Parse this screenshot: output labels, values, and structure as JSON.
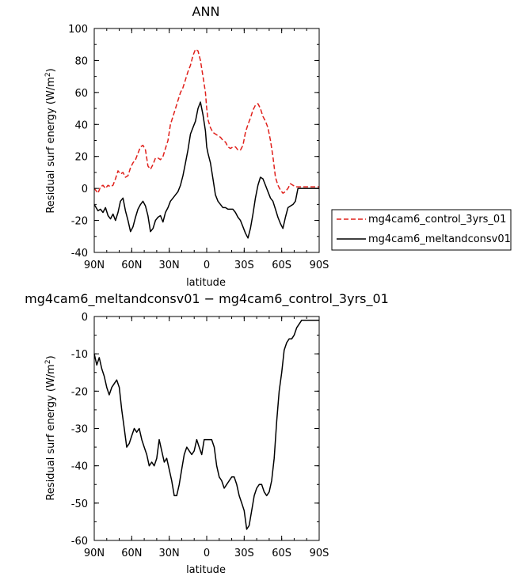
{
  "colors": {
    "control": "#e0201b",
    "melt": "#000000",
    "axis": "#000000"
  },
  "chart_data": [
    {
      "type": "line",
      "title": "ANN",
      "xlabel": "latitude",
      "ylabel": "Residual surf energy (W/m²)",
      "ylabel_prefix": "Residual surf energy  (W/m",
      "ylabel_sup": "2",
      "ylabel_suffix": ")",
      "xlim": [
        90,
        -90
      ],
      "ylim": [
        -40,
        100
      ],
      "xticks": [
        90,
        60,
        30,
        0,
        -30,
        -60,
        -90
      ],
      "xtick_labels": [
        "90N",
        "60N",
        "30N",
        "0",
        "30S",
        "60S",
        "90S"
      ],
      "yticks": [
        -40,
        -20,
        0,
        20,
        40,
        60,
        80,
        100
      ],
      "ytick_labels": [
        "-40",
        "-20",
        "0",
        "20",
        "40",
        "60",
        "80",
        "100"
      ],
      "grid": false,
      "legend_position": "right",
      "series": [
        {
          "name": "mg4cam6_control_3yrs_01",
          "style": "dashed",
          "color": "#e0201b",
          "x": [
            90,
            87,
            85,
            83,
            81,
            79,
            77,
            75,
            73,
            71,
            69,
            67,
            65,
            63,
            61,
            59,
            57,
            55,
            53,
            51,
            49,
            47,
            45,
            43,
            41,
            39,
            37,
            35,
            33,
            31,
            29,
            27,
            25,
            23,
            21,
            19,
            17,
            15,
            13,
            11,
            9,
            7,
            5,
            3,
            1,
            0,
            -1,
            -3,
            -5,
            -7,
            -9,
            -11,
            -13,
            -15,
            -17,
            -19,
            -21,
            -23,
            -25,
            -27,
            -29,
            -31,
            -33,
            -35,
            -37,
            -39,
            -41,
            -43,
            -45,
            -47,
            -49,
            -51,
            -53,
            -55,
            -57,
            -59,
            -61,
            -63,
            -65,
            -67,
            -69,
            -71,
            -73,
            -75,
            -77,
            -79,
            -81,
            -83,
            -85,
            -87,
            -90
          ],
          "y": [
            0,
            -3,
            1,
            2,
            0,
            2,
            1,
            2,
            6,
            11,
            9,
            10,
            7,
            8,
            13,
            16,
            18,
            22,
            26,
            27,
            24,
            14,
            12,
            15,
            19,
            19,
            18,
            20,
            25,
            30,
            40,
            45,
            50,
            55,
            60,
            63,
            68,
            73,
            77,
            83,
            87,
            86,
            80,
            70,
            60,
            50,
            43,
            38,
            35,
            34,
            33,
            32,
            30,
            29,
            26,
            25,
            26,
            26,
            24,
            24,
            27,
            35,
            40,
            44,
            49,
            52,
            53,
            50,
            45,
            42,
            38,
            30,
            20,
            7,
            2,
            -1,
            -3,
            -2,
            0,
            3,
            2,
            1,
            1,
            1,
            1,
            1,
            1,
            1,
            1,
            1,
            1
          ]
        },
        {
          "name": "mg4cam6_meltandconsv01",
          "style": "solid",
          "color": "#000000",
          "x": [
            90,
            87,
            85,
            83,
            81,
            79,
            77,
            75,
            73,
            71,
            69,
            67,
            65,
            63,
            61,
            59,
            57,
            55,
            53,
            51,
            49,
            47,
            45,
            43,
            41,
            39,
            37,
            35,
            33,
            31,
            29,
            27,
            25,
            23,
            21,
            19,
            17,
            15,
            13,
            11,
            9,
            7,
            5,
            3,
            1,
            0,
            -1,
            -3,
            -5,
            -7,
            -9,
            -11,
            -13,
            -15,
            -17,
            -19,
            -21,
            -23,
            -25,
            -27,
            -29,
            -31,
            -33,
            -35,
            -37,
            -39,
            -41,
            -43,
            -45,
            -47,
            -49,
            -51,
            -53,
            -55,
            -57,
            -59,
            -61,
            -63,
            -65,
            -67,
            -69,
            -71,
            -73,
            -75,
            -77,
            -79,
            -81,
            -83,
            -85,
            -87,
            -90
          ],
          "y": [
            -10,
            -14,
            -13,
            -15,
            -12,
            -17,
            -19,
            -16,
            -20,
            -15,
            -8,
            -6,
            -14,
            -20,
            -27,
            -24,
            -18,
            -13,
            -10,
            -8,
            -11,
            -17,
            -27,
            -25,
            -20,
            -18,
            -17,
            -21,
            -15,
            -12,
            -8,
            -6,
            -4,
            -2,
            2,
            8,
            16,
            24,
            34,
            38,
            42,
            50,
            54,
            46,
            36,
            26,
            22,
            16,
            6,
            -4,
            -8,
            -10,
            -12,
            -12,
            -13,
            -13,
            -13,
            -15,
            -18,
            -20,
            -24,
            -28,
            -31,
            -25,
            -16,
            -6,
            2,
            7,
            6,
            2,
            -2,
            -6,
            -8,
            -13,
            -18,
            -22,
            -25,
            -18,
            -12,
            -11,
            -10,
            -8,
            0,
            0,
            0,
            0,
            0,
            0,
            0,
            0,
            0
          ]
        }
      ]
    },
    {
      "type": "line",
      "title": "mg4cam6_meltandconsv01 − mg4cam6_control_3yrs_01",
      "xlabel": "latitude",
      "ylabel": "Residual surf energy (W/m²)",
      "ylabel_prefix": "Residual surf energy  (W/m",
      "ylabel_sup": "2",
      "ylabel_suffix": ")",
      "xlim": [
        90,
        -90
      ],
      "ylim": [
        -60,
        0
      ],
      "xticks": [
        90,
        60,
        30,
        0,
        -30,
        -60,
        -90
      ],
      "xtick_labels": [
        "90N",
        "60N",
        "30N",
        "0",
        "30S",
        "60S",
        "90S"
      ],
      "yticks": [
        -60,
        -50,
        -40,
        -30,
        -20,
        -10,
        0
      ],
      "ytick_labels": [
        "-60",
        "-50",
        "-40",
        "-30",
        "-20",
        "-10",
        "0"
      ],
      "grid": false,
      "series": [
        {
          "style": "solid",
          "color": "#000000",
          "x": [
            90,
            88,
            86,
            84,
            82,
            80,
            78,
            76,
            74,
            72,
            70,
            68,
            66,
            64,
            62,
            60,
            58,
            56,
            54,
            52,
            50,
            48,
            46,
            44,
            42,
            40,
            38,
            36,
            34,
            32,
            30,
            28,
            26,
            24,
            22,
            20,
            18,
            16,
            14,
            12,
            10,
            8,
            6,
            4,
            2,
            0,
            -2,
            -4,
            -6,
            -8,
            -10,
            -12,
            -14,
            -16,
            -18,
            -20,
            -22,
            -24,
            -26,
            -28,
            -30,
            -32,
            -34,
            -36,
            -38,
            -40,
            -42,
            -44,
            -46,
            -48,
            -50,
            -52,
            -54,
            -56,
            -58,
            -60,
            -62,
            -64,
            -66,
            -68,
            -70,
            -72,
            -74,
            -76,
            -78,
            -80,
            -82,
            -84,
            -86,
            -88,
            -90
          ],
          "y": [
            -10,
            -13,
            -11,
            -14,
            -16,
            -19,
            -21,
            -19,
            -18,
            -17,
            -19,
            -25,
            -30,
            -35,
            -34,
            -32,
            -30,
            -31,
            -30,
            -33,
            -35,
            -37,
            -40,
            -39,
            -40,
            -38,
            -33,
            -36,
            -39,
            -38,
            -41,
            -44,
            -48,
            -48,
            -45,
            -41,
            -37,
            -35,
            -36,
            -37,
            -36,
            -33,
            -35,
            -37,
            -33,
            -33,
            -33,
            -33,
            -35,
            -40,
            -43,
            -44,
            -46,
            -45,
            -44,
            -43,
            -43,
            -45,
            -48,
            -50,
            -52,
            -57,
            -56,
            -52,
            -48,
            -46,
            -45,
            -45,
            -47,
            -48,
            -47,
            -44,
            -38,
            -28,
            -20,
            -15,
            -9,
            -7,
            -6,
            -6,
            -5,
            -3,
            -2,
            -1,
            -1,
            -1,
            -1,
            -1,
            -1,
            -1,
            -1
          ]
        }
      ]
    }
  ]
}
